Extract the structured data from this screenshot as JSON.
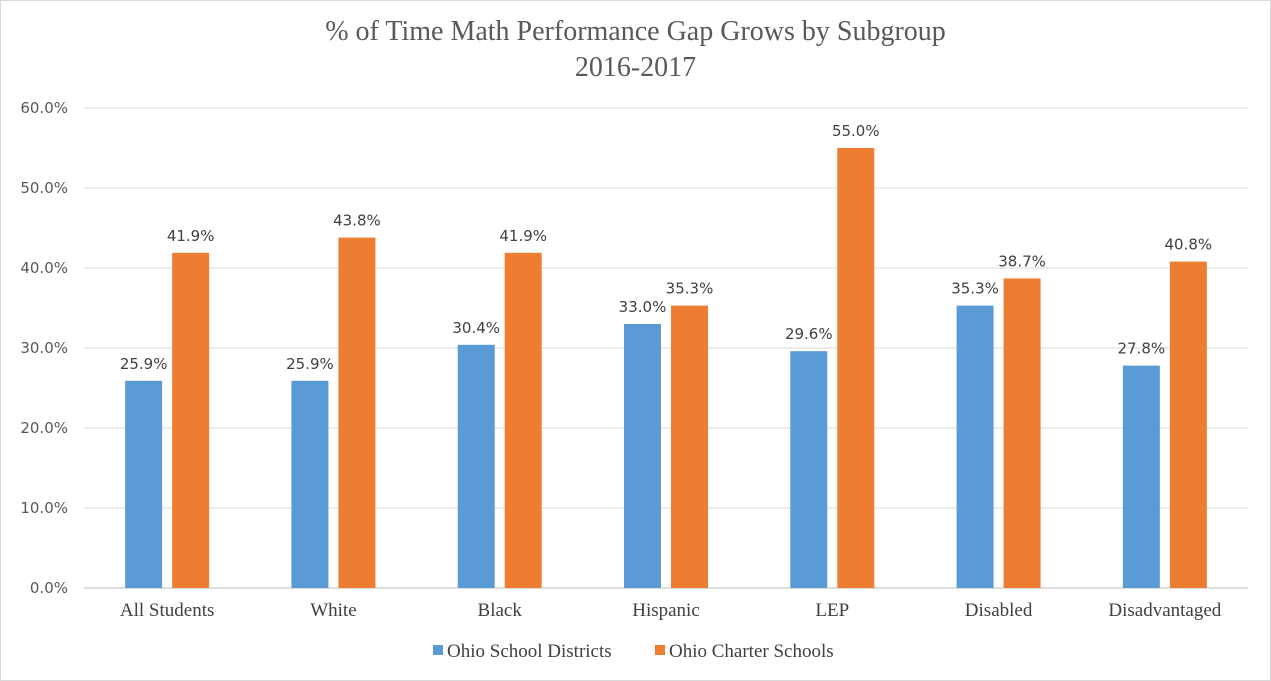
{
  "chart_data": {
    "type": "bar",
    "title_line1": "% of Time Math Performance Gap Grows by Subgroup",
    "title_line2": "2016-2017",
    "categories": [
      "All Students",
      "White",
      "Black",
      "Hispanic",
      "LEP",
      "Disabled",
      "Disadvantaged"
    ],
    "series": [
      {
        "name": "Ohio School Districts",
        "color": "#5b9bd5",
        "values": [
          25.9,
          25.9,
          30.4,
          33.0,
          29.6,
          35.3,
          27.8
        ],
        "labels": [
          "25.9%",
          "25.9%",
          "30.4%",
          "33.0%",
          "29.6%",
          "35.3%",
          "27.8%"
        ]
      },
      {
        "name": "Ohio Charter Schools",
        "color": "#ed7d31",
        "values": [
          41.9,
          43.8,
          41.9,
          35.3,
          55.0,
          38.7,
          40.8
        ],
        "labels": [
          "41.9%",
          "43.8%",
          "41.9%",
          "35.3%",
          "55.0%",
          "38.7%",
          "40.8%"
        ]
      }
    ],
    "y_ticks": [
      "0.0%",
      "10.0%",
      "20.0%",
      "30.0%",
      "40.0%",
      "50.0%",
      "60.0%"
    ],
    "ylim": [
      0,
      60
    ],
    "grid": true,
    "legend_position": "bottom"
  }
}
